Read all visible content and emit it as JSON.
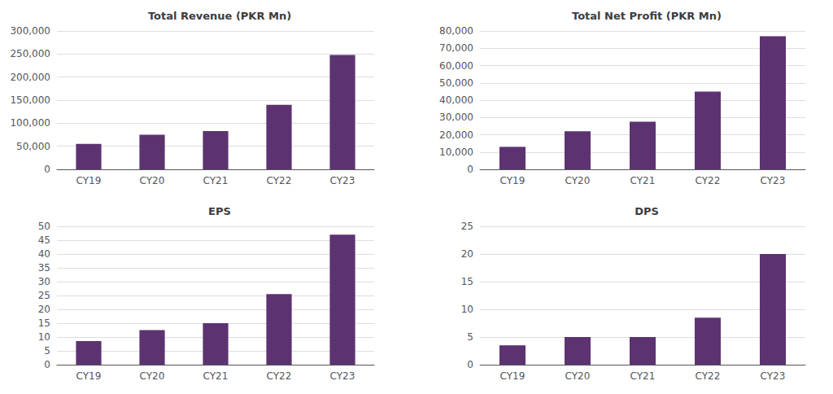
{
  "chart_data": [
    {
      "type": "bar",
      "title": "Total Revenue (PKR Mn)",
      "categories": [
        "CY19",
        "CY20",
        "CY21",
        "CY22",
        "CY23"
      ],
      "values": [
        55000,
        75000,
        83000,
        140000,
        248000
      ],
      "color": "#5C3370",
      "ylim": [
        0,
        300000
      ],
      "yticks": [
        0,
        {
          "value": 50000,
          "label": "50,000"
        },
        {
          "value": 100000,
          "label": "100,000"
        },
        {
          "value": 150000,
          "label": "150,000"
        },
        {
          "value": 200000,
          "label": "200,000"
        },
        {
          "value": 250000,
          "label": "250,000"
        },
        {
          "value": 300000,
          "label": "300,000"
        }
      ],
      "grid": true
    },
    {
      "type": "bar",
      "title": "Total Net Profit (PKR Mn)",
      "categories": [
        "CY19",
        "CY20",
        "CY21",
        "CY22",
        "CY23"
      ],
      "values": [
        13000,
        22000,
        27500,
        45000,
        77000
      ],
      "color": "#5C3370",
      "ylim": [
        0,
        80000
      ],
      "yticks": [
        0,
        {
          "value": 10000,
          "label": "10,000"
        },
        {
          "value": 20000,
          "label": "20,000"
        },
        {
          "value": 30000,
          "label": "30,000"
        },
        {
          "value": 40000,
          "label": "40,000"
        },
        {
          "value": 50000,
          "label": "50,000"
        },
        {
          "value": 60000,
          "label": "60,000"
        },
        {
          "value": 70000,
          "label": "70,000"
        },
        {
          "value": 80000,
          "label": "80,000"
        }
      ],
      "grid": true
    },
    {
      "type": "bar",
      "title": "EPS",
      "categories": [
        "CY19",
        "CY20",
        "CY21",
        "CY22",
        "CY23"
      ],
      "values": [
        8.5,
        12.5,
        15.0,
        25.5,
        47.0
      ],
      "color": "#5C3370",
      "ylim": [
        0,
        50
      ],
      "yticks": [
        0,
        5,
        10,
        15,
        20,
        25,
        30,
        35,
        40,
        45,
        50
      ],
      "grid": true
    },
    {
      "type": "bar",
      "title": "DPS",
      "categories": [
        "CY19",
        "CY20",
        "CY21",
        "CY22",
        "CY23"
      ],
      "values": [
        3.5,
        5.0,
        5.0,
        8.5,
        20.0
      ],
      "color": "#5C3370",
      "ylim": [
        0,
        25
      ],
      "yticks": [
        0,
        5,
        10,
        15,
        20,
        25
      ],
      "grid": true
    }
  ]
}
